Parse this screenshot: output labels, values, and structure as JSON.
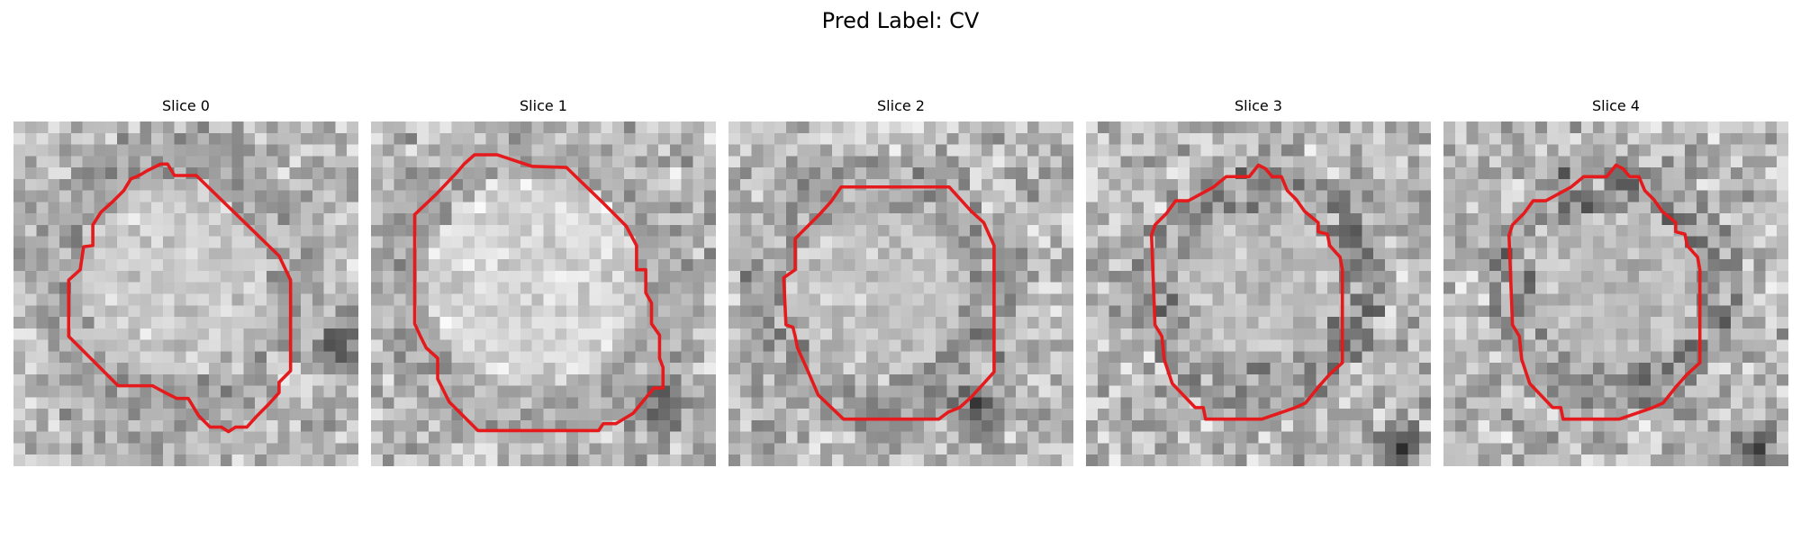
{
  "figure": {
    "title": "Pred Label: CV",
    "overlay_color": "#e41a1c",
    "colormap": "grayscale",
    "panels": [
      {
        "title": "Slice 0",
        "seed": 11,
        "center": [
          0.46,
          0.46
        ],
        "radius": 0.32,
        "inner": 0.86,
        "rim_dark": 0.45,
        "shadow": [
          0.95,
          0.65
        ]
      },
      {
        "title": "Slice 1",
        "seed": 23,
        "center": [
          0.47,
          0.46
        ],
        "radius": 0.36,
        "inner": 0.9,
        "rim_dark": 0.4,
        "shadow": [
          0.85,
          0.82
        ]
      },
      {
        "title": "Slice 2",
        "seed": 37,
        "center": [
          0.43,
          0.5
        ],
        "radius": 0.3,
        "inner": 0.82,
        "rim_dark": 0.55,
        "shadow": [
          0.72,
          0.85
        ]
      },
      {
        "title": "Slice 3",
        "seed": 41,
        "center": [
          0.5,
          0.48
        ],
        "radius": 0.27,
        "inner": 0.8,
        "rim_dark": 0.7,
        "shadow": [
          0.9,
          0.95
        ]
      },
      {
        "title": "Slice 4",
        "seed": 53,
        "center": [
          0.5,
          0.48
        ],
        "radius": 0.27,
        "inner": 0.8,
        "rim_dark": 0.7,
        "shadow": [
          0.9,
          0.95
        ]
      }
    ]
  }
}
